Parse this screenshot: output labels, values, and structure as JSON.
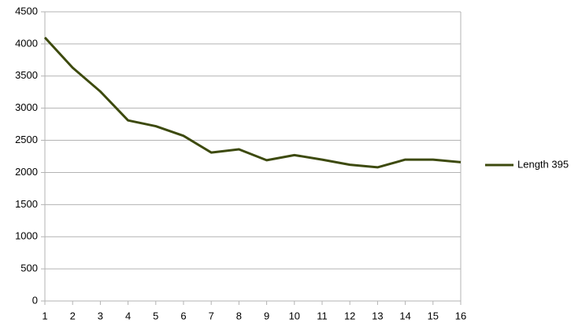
{
  "chart_data": {
    "type": "line",
    "x": [
      1,
      2,
      3,
      4,
      5,
      6,
      7,
      8,
      9,
      10,
      11,
      12,
      13,
      14,
      15,
      16
    ],
    "series": [
      {
        "name": "Length 395",
        "color": "#3d4a0e",
        "values": [
          4100,
          3630,
          3260,
          2810,
          2720,
          2570,
          2310,
          2360,
          2190,
          2270,
          2200,
          2120,
          2080,
          2200,
          2200,
          2160
        ]
      }
    ],
    "xlim": [
      1,
      16
    ],
    "xticks": [
      1,
      2,
      3,
      4,
      5,
      6,
      7,
      8,
      9,
      10,
      11,
      12,
      13,
      14,
      15,
      16
    ],
    "ylim": [
      0,
      4500
    ],
    "yticks": [
      0,
      500,
      1000,
      1500,
      2000,
      2500,
      3000,
      3500,
      4000,
      4500
    ],
    "grid": true,
    "legend": "right"
  }
}
